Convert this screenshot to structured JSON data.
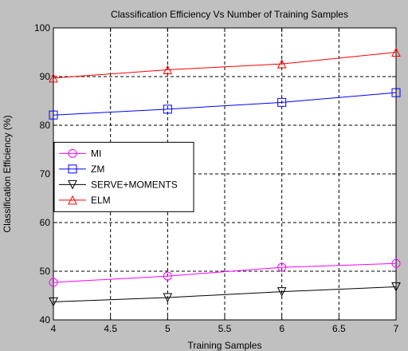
{
  "chart_data": {
    "type": "line",
    "title": "Classification Efficiency Vs Number of Training Samples",
    "xlabel": "Training Samples",
    "ylabel": "Classification Efficiency (%)",
    "xlim": [
      4,
      7
    ],
    "ylim": [
      40,
      100
    ],
    "x_ticks": [
      "4",
      "4.5",
      "5",
      "5.5",
      "6",
      "6.5",
      "7"
    ],
    "y_ticks": [
      "40",
      "50",
      "60",
      "70",
      "80",
      "90",
      "100"
    ],
    "grid": true,
    "legend_position": "left",
    "x": [
      4,
      5,
      6,
      7
    ],
    "series": [
      {
        "name": "MI",
        "values": [
          47.7,
          49.0,
          50.8,
          51.6
        ],
        "color": "#ff00ff",
        "marker": "circle"
      },
      {
        "name": "ZM",
        "values": [
          82.1,
          83.3,
          84.7,
          86.7
        ],
        "color": "#0000ff",
        "marker": "square"
      },
      {
        "name": "SERVE+MOMENTS",
        "values": [
          43.7,
          44.6,
          45.8,
          46.8
        ],
        "color": "#000000",
        "marker": "triangle-down"
      },
      {
        "name": "ELM",
        "values": [
          89.7,
          91.4,
          92.6,
          95.0
        ],
        "color": "#ff0000",
        "marker": "triangle-up"
      }
    ]
  }
}
